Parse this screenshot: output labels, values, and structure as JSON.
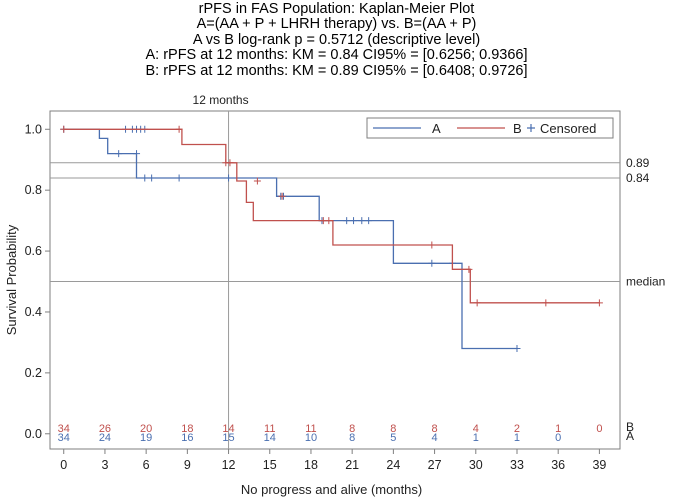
{
  "chart_data": {
    "type": "line",
    "subtype": "kaplan-meier",
    "title_lines": [
      "rPFS in FAS Population: Kaplan-Meier Plot",
      "A=(AA + P + LHRH therapy) vs. B=(AA + P)",
      "A vs B log-rank p = 0.5712 (descriptive level)",
      "A: rPFS at 12 months: KM = 0.84 CI95% = [0.6256; 0.9366]",
      "B: rPFS at 12 months: KM = 0.89 CI95% = [0.6408; 0.9726]"
    ],
    "xlabel": "No progress and alive (months)",
    "ylabel": "Survival Probability",
    "xlim": [
      -1,
      40.5
    ],
    "ylim": [
      -0.05,
      1.06
    ],
    "xticks": [
      0,
      3,
      6,
      9,
      12,
      15,
      18,
      21,
      24,
      27,
      30,
      33,
      36,
      39
    ],
    "yticks": [
      0.0,
      0.2,
      0.4,
      0.6,
      0.8,
      1.0
    ],
    "ytick_labels": [
      "0.0",
      "0.2",
      "0.4",
      "0.6",
      "0.8",
      "1.0"
    ],
    "reference_lines": {
      "vertical": {
        "x": 12,
        "label": "12 months"
      },
      "horizontal": [
        {
          "y": 0.89,
          "label": "0.89"
        },
        {
          "y": 0.84,
          "label": "0.84"
        },
        {
          "y": 0.5,
          "label": "median"
        }
      ]
    },
    "legend": {
      "position": "top-right",
      "entries": [
        {
          "label": "A",
          "kind": "line",
          "series": "A"
        },
        {
          "label": "B",
          "kind": "line",
          "series": "B"
        },
        {
          "label": "Censored",
          "kind": "marker"
        }
      ]
    },
    "series": [
      {
        "name": "A",
        "color": "#4a6fb0",
        "steps": [
          [
            0,
            1.0
          ],
          [
            2.6,
            0.97
          ],
          [
            3.2,
            0.92
          ],
          [
            5.3,
            0.84
          ],
          [
            12.9,
            0.84
          ],
          [
            15.5,
            0.78
          ],
          [
            18.6,
            0.7
          ],
          [
            24.0,
            0.56
          ],
          [
            29.0,
            0.28
          ],
          [
            33.0,
            0.28
          ]
        ],
        "censored": [
          [
            0,
            1.0
          ],
          [
            4.5,
            1.0
          ],
          [
            5.0,
            1.0
          ],
          [
            5.3,
            1.0
          ],
          [
            5.6,
            1.0
          ],
          [
            5.9,
            1.0
          ],
          [
            4.0,
            0.92
          ],
          [
            5.3,
            0.92
          ],
          [
            5.9,
            0.84
          ],
          [
            6.4,
            0.84
          ],
          [
            8.4,
            0.84
          ],
          [
            12.0,
            0.84
          ],
          [
            15.8,
            0.78
          ],
          [
            16.0,
            0.78
          ],
          [
            18.8,
            0.7
          ],
          [
            20.6,
            0.7
          ],
          [
            21.1,
            0.7
          ],
          [
            21.7,
            0.7
          ],
          [
            22.2,
            0.7
          ],
          [
            26.8,
            0.56
          ],
          [
            28.3,
            0.56
          ],
          [
            33.0,
            0.28
          ]
        ]
      },
      {
        "name": "B",
        "color": "#c0504d",
        "steps": [
          [
            0,
            1.0
          ],
          [
            8.6,
            0.95
          ],
          [
            11.8,
            0.89
          ],
          [
            12.6,
            0.83
          ],
          [
            13.3,
            0.76
          ],
          [
            13.8,
            0.7
          ],
          [
            19.6,
            0.62
          ],
          [
            28.3,
            0.54
          ],
          [
            29.6,
            0.43
          ],
          [
            39.0,
            0.43
          ]
        ],
        "censored": [
          [
            0,
            1.0
          ],
          [
            8.4,
            1.0
          ],
          [
            11.8,
            0.89
          ],
          [
            12.1,
            0.89
          ],
          [
            14.1,
            0.83
          ],
          [
            15.9,
            0.78
          ],
          [
            18.9,
            0.7
          ],
          [
            19.3,
            0.7
          ],
          [
            26.8,
            0.62
          ],
          [
            29.5,
            0.54
          ],
          [
            30.1,
            0.43
          ],
          [
            35.1,
            0.43
          ],
          [
            39.0,
            0.43
          ]
        ]
      }
    ],
    "at_risk": {
      "times": [
        0,
        3,
        6,
        9,
        12,
        15,
        18,
        21,
        24,
        27,
        30,
        33,
        36,
        39
      ],
      "B": [
        "34",
        "26",
        "20",
        "18",
        "14",
        "11",
        "11",
        "8",
        "8",
        "8",
        "4",
        "2",
        "1",
        "0"
      ],
      "A": [
        "34",
        "24",
        "19",
        "16",
        "15",
        "14",
        "10",
        "8",
        "5",
        "4",
        "1",
        "1",
        "0",
        ""
      ],
      "row_labels": [
        "B",
        "A"
      ]
    }
  }
}
